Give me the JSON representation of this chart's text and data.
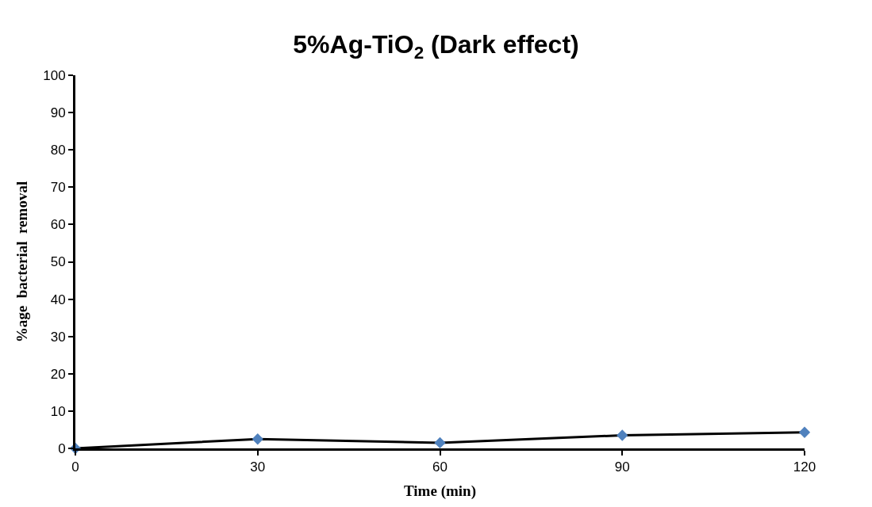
{
  "chart_data": {
    "type": "line",
    "title": "5%Ag-TiO$_{2}$ (Dark effect)",
    "xlabel": "Time (min)",
    "ylabel": "%age  bacterial  removal",
    "x": [
      0,
      30,
      60,
      90,
      120
    ],
    "series": [
      {
        "color": "#4f81bd",
        "values": [
          0,
          2.5,
          1.5,
          3.5,
          4.3
        ]
      }
    ],
    "xlim": [
      0,
      120
    ],
    "xticks": [
      0,
      30,
      60,
      90,
      120
    ],
    "ylim": [
      0,
      100
    ],
    "yticks": [
      0,
      10,
      20,
      30,
      40,
      50,
      60,
      70,
      80,
      90,
      100
    ],
    "grid": false,
    "legend": false,
    "marker": "diamond",
    "line_style": "solid"
  }
}
